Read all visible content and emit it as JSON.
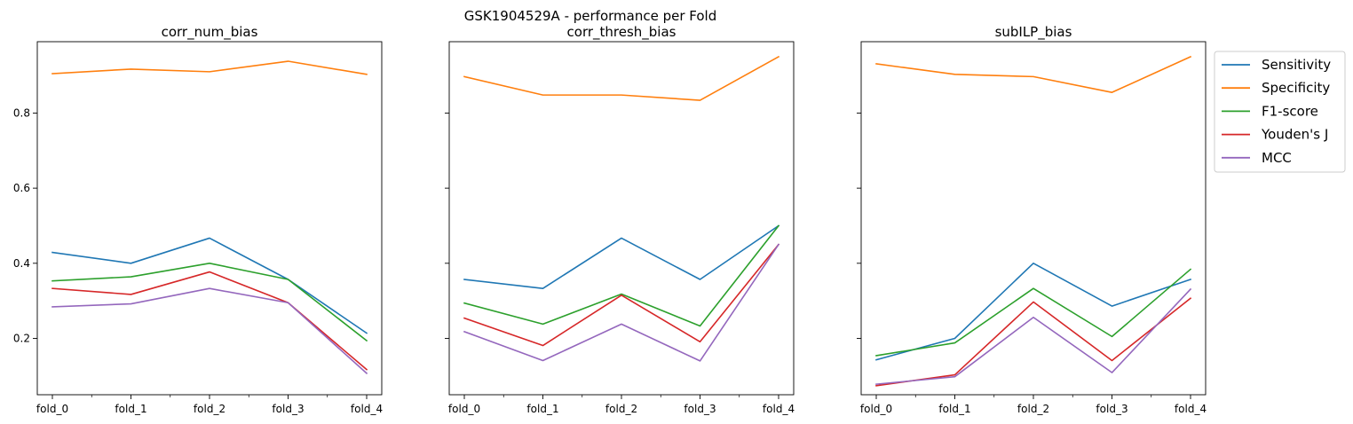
{
  "chart_data": {
    "type": "line",
    "suptitle": "GSK1904529A - performance per Fold",
    "categories": [
      "fold_0",
      "fold_1",
      "fold_2",
      "fold_3",
      "fold_4"
    ],
    "ylim": [
      0.05,
      0.99
    ],
    "yticks": [
      "0.2",
      "0.4",
      "0.6",
      "0.8"
    ],
    "shared_y": true,
    "grid": false,
    "legend_placement": "outside-right",
    "series_colors": {
      "Sensitivity": "#1f77b4",
      "Specificity": "#ff7f0e",
      "F1-score": "#2ca02c",
      "Youden's J": "#d62728",
      "MCC": "#9467bd"
    },
    "legend": [
      "Sensitivity",
      "Specificity",
      "F1-score",
      "Youden's J",
      "MCC"
    ],
    "panels": [
      {
        "title": "corr_num_bias",
        "series": [
          {
            "name": "Sensitivity",
            "values": [
              0.429,
              0.4,
              0.467,
              0.357,
              0.214
            ]
          },
          {
            "name": "Specificity",
            "values": [
              0.905,
              0.917,
              0.91,
              0.938,
              0.903
            ]
          },
          {
            "name": "F1-score",
            "values": [
              0.353,
              0.364,
              0.4,
              0.357,
              0.194
            ]
          },
          {
            "name": "Youden's J",
            "values": [
              0.333,
              0.317,
              0.377,
              0.295,
              0.117
            ]
          },
          {
            "name": "MCC",
            "values": [
              0.284,
              0.292,
              0.333,
              0.295,
              0.107
            ]
          }
        ]
      },
      {
        "title": "corr_thresh_bias",
        "series": [
          {
            "name": "Sensitivity",
            "values": [
              0.357,
              0.333,
              0.467,
              0.357,
              0.5
            ]
          },
          {
            "name": "Specificity",
            "values": [
              0.897,
              0.848,
              0.848,
              0.834,
              0.95
            ]
          },
          {
            "name": "F1-score",
            "values": [
              0.294,
              0.238,
              0.318,
              0.233,
              0.5
            ]
          },
          {
            "name": "Youden's J",
            "values": [
              0.254,
              0.181,
              0.315,
              0.191,
              0.45
            ]
          },
          {
            "name": "MCC",
            "values": [
              0.218,
              0.141,
              0.238,
              0.14,
              0.45
            ]
          }
        ]
      },
      {
        "title": "subILP_bias",
        "series": [
          {
            "name": "Sensitivity",
            "values": [
              0.143,
              0.2,
              0.4,
              0.286,
              0.357
            ]
          },
          {
            "name": "Specificity",
            "values": [
              0.931,
              0.903,
              0.897,
              0.855,
              0.95
            ]
          },
          {
            "name": "F1-score",
            "values": [
              0.154,
              0.188,
              0.333,
              0.205,
              0.384
            ]
          },
          {
            "name": "Youden's J",
            "values": [
              0.074,
              0.103,
              0.297,
              0.141,
              0.307
            ]
          },
          {
            "name": "MCC",
            "values": [
              0.078,
              0.098,
              0.256,
              0.109,
              0.331
            ]
          }
        ]
      }
    ]
  }
}
